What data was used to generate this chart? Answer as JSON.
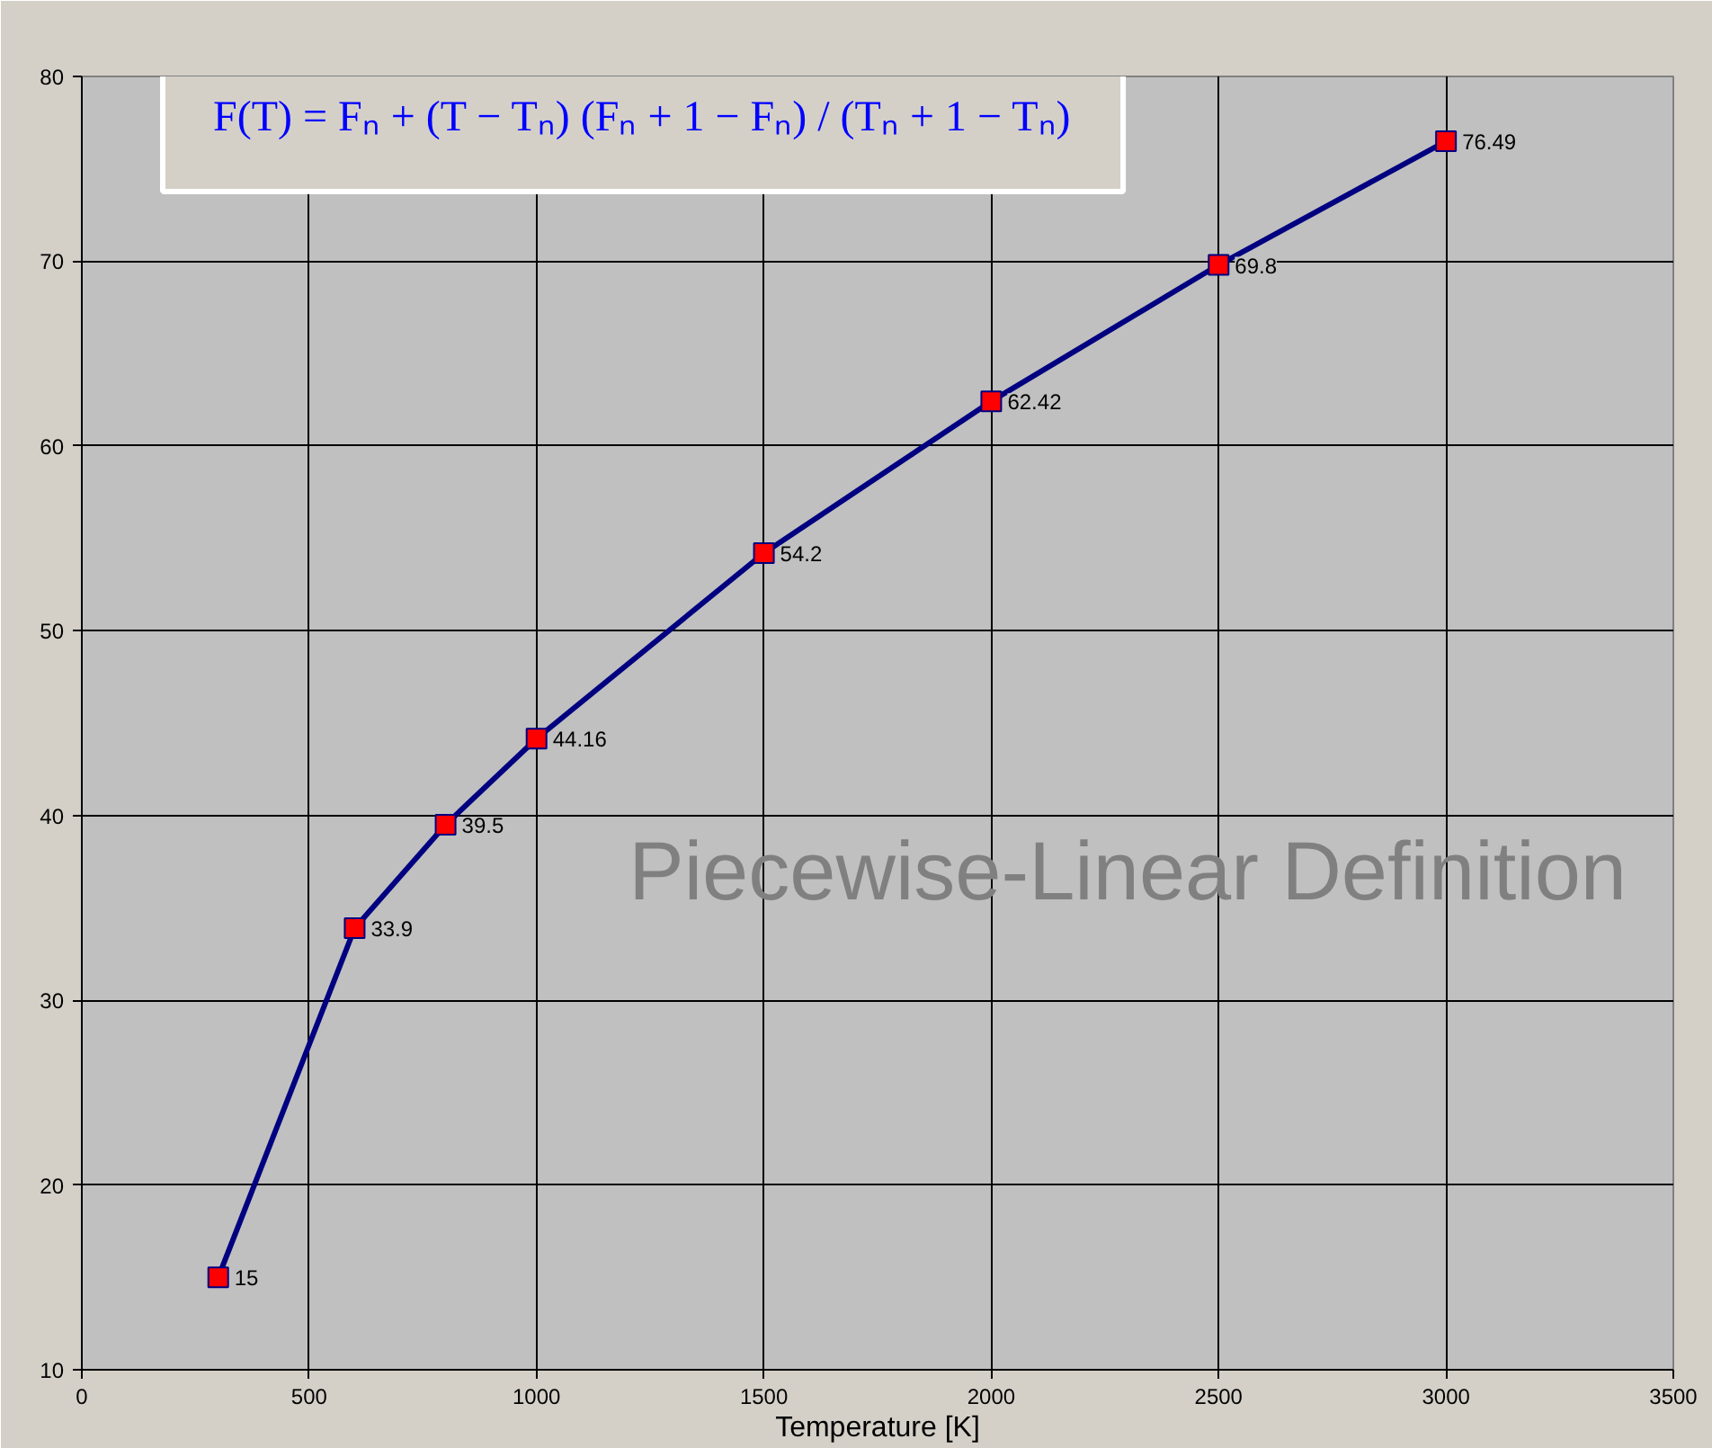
{
  "chart_data": {
    "type": "line",
    "xlabel": "Temperature [K]",
    "x": [
      300,
      600,
      800,
      1000,
      1500,
      2000,
      2500,
      3000
    ],
    "series": [
      {
        "color": "#000080",
        "values": [
          15,
          33.9,
          39.5,
          44.16,
          54.2,
          62.42,
          69.8,
          76.49
        ]
      }
    ],
    "marker": "square",
    "data_labels": true,
    "grid": true,
    "xlim": [
      0,
      3500
    ],
    "xticks": [
      0,
      500,
      1000,
      1500,
      2000,
      2500,
      3000,
      3500
    ],
    "ylim": [
      10,
      80
    ],
    "yticks": [
      10,
      20,
      30,
      40,
      50,
      60,
      70,
      80
    ],
    "annotations": [
      "F(T) = Fₙ + (T − Tₙ) (Fₙ + 1 − Fₙ) / (Tₙ + 1 − Tₙ)",
      "Piecewise-Linear Definition"
    ]
  }
}
